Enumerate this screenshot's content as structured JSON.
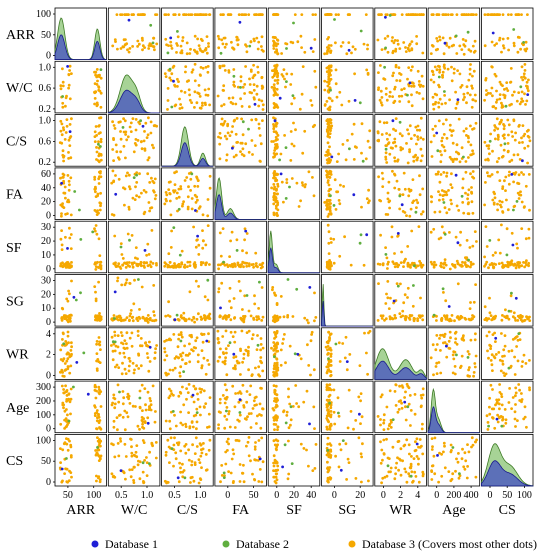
{
  "chart_data": {
    "type": "scatter",
    "subtype": "pair-plot",
    "variables": [
      "ARR",
      "W/C",
      "C/S",
      "FA",
      "SF",
      "SG",
      "WR",
      "Age",
      "CS"
    ],
    "diagonal": "kde",
    "grid": false,
    "legend_position": "bottom",
    "series": [
      {
        "name": "Database 1",
        "color": "#1f1fd6"
      },
      {
        "name": "Database 2",
        "color": "#5fae3f"
      },
      {
        "name": "Database 3 (Covers most other dots)",
        "color": "#f5a800"
      }
    ],
    "y_ticks": [
      [
        "0",
        "50",
        "100"
      ],
      [
        "0.2",
        "0.6",
        "1.0"
      ],
      [
        "0.2",
        "0.6",
        "1.0"
      ],
      [
        "0",
        "20",
        "40",
        "60"
      ],
      [
        "0",
        "10",
        "20",
        "30"
      ],
      [
        "0",
        "10",
        "20",
        "30"
      ],
      [
        "0",
        "2",
        "4"
      ],
      [
        "0",
        "100",
        "200",
        "300"
      ],
      [
        "0",
        "50",
        "100"
      ]
    ],
    "x_ticks": [
      [
        "50",
        "100"
      ],
      [
        "0.5",
        "1.0"
      ],
      [
        "0.5",
        "1.0"
      ],
      [
        "0",
        "50"
      ],
      [
        "0",
        "20",
        "40"
      ],
      [
        "0",
        "20"
      ],
      [
        "0",
        "2",
        "4"
      ],
      [
        "0",
        "200",
        "400"
      ],
      [
        "0",
        "50",
        "100"
      ]
    ]
  }
}
